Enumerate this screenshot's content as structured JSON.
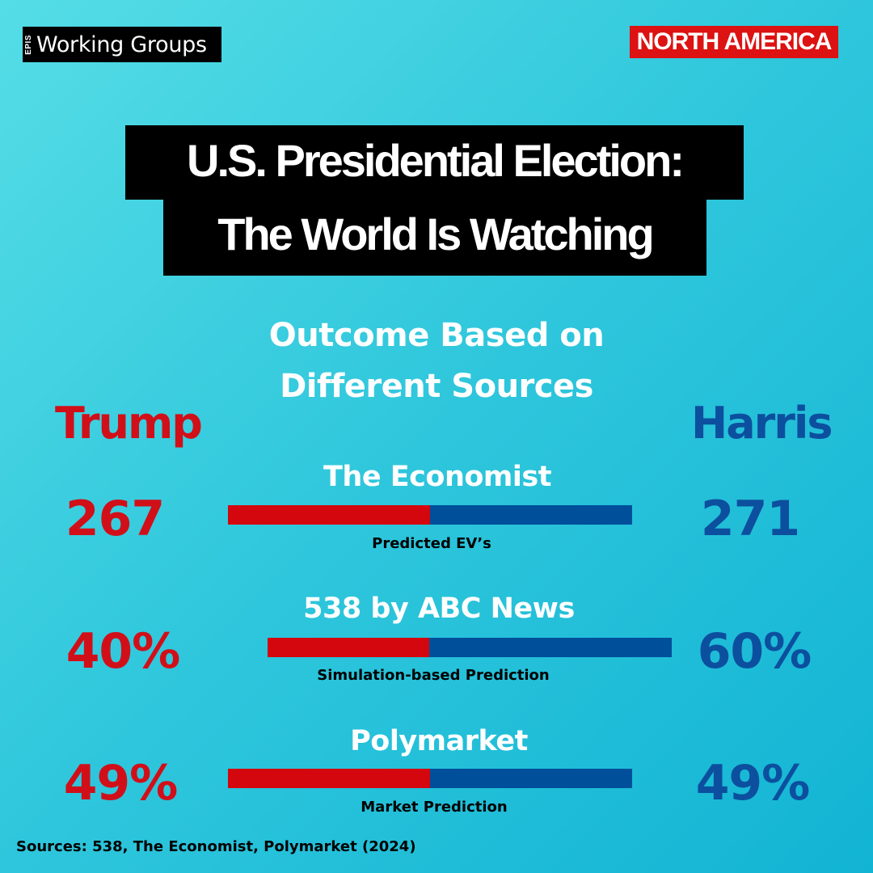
{
  "brand": {
    "prefix": "EPIS",
    "name": "Working Groups"
  },
  "region_tag": "NORTH AMERICA",
  "headline": {
    "line1": "U.S. Presidential Election:",
    "line2": "The World Is Watching"
  },
  "subtitle": {
    "line1": "Outcome Based on",
    "line2": "Different Sources"
  },
  "candidates": {
    "left": "Trump",
    "right": "Harris"
  },
  "colors": {
    "trump": "#d4060e",
    "harris": "#004f9b",
    "region_tag": "#dd1212"
  },
  "chart_data": {
    "type": "bar",
    "orientation": "horizontal-stacked",
    "series": [
      {
        "name": "Trump"
      },
      {
        "name": "Harris"
      }
    ],
    "rows": [
      {
        "source": "The Economist",
        "measure": "Predicted EV’s",
        "trump_value": 267,
        "harris_value": 271,
        "trump_label": "267",
        "harris_label": "271",
        "trump_share": 0.5,
        "harris_share": 0.5
      },
      {
        "source": "538 by ABC News",
        "measure": "Simulation-based Prediction",
        "trump_value": 40,
        "harris_value": 60,
        "trump_label": "40%",
        "harris_label": "60%",
        "trump_share": 0.4,
        "harris_share": 0.6
      },
      {
        "source": "Polymarket",
        "measure": "Market Prediction",
        "trump_value": 49,
        "harris_value": 49,
        "trump_label": "49%",
        "harris_label": "49%",
        "trump_share": 0.5,
        "harris_share": 0.5
      }
    ]
  },
  "footer": "Sources: 538, The Economist, Polymarket (2024)"
}
